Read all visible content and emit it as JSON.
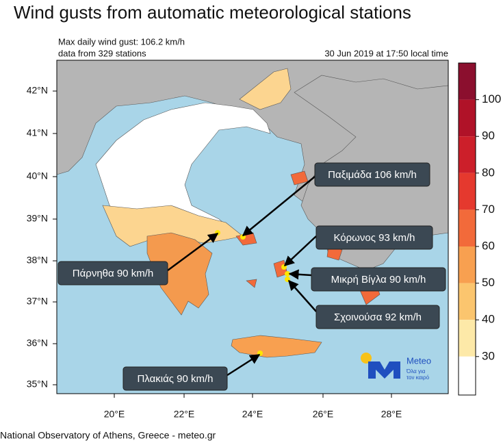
{
  "title": "Wind gusts from automatic meteorological stations",
  "info": {
    "max_gust": "Max daily wind gust: 106.2 km/h",
    "stations": "data from 329 stations",
    "timestamp": "30 Jun 2019 at 17:50 local time"
  },
  "latitude_labels": [
    "42°N",
    "41°N",
    "40°N",
    "39°N",
    "38°N",
    "37°N",
    "36°N",
    "35°N"
  ],
  "longitude_labels": [
    "20°E",
    "22°E",
    "24°E",
    "26°E",
    "28°E"
  ],
  "colorbar": {
    "labels": [
      "100",
      "90",
      "80",
      "70",
      "60",
      "50",
      "40",
      "30"
    ],
    "colors": [
      "#8b0f2e",
      "#b01228",
      "#cc1f2a",
      "#e5392e",
      "#f26a3a",
      "#f8a050",
      "#fbc56e",
      "#fde9a8",
      "#ffffff"
    ]
  },
  "callouts": [
    {
      "label": "Παξιμάδα 106 km/h"
    },
    {
      "label": "Κόρωνος 93 km/h"
    },
    {
      "label": "Μικρή Βίγλα 90 km/h"
    },
    {
      "label": "Σχοινούσα 92 km/h"
    },
    {
      "label": "Πάρνηθα 90 km/h"
    },
    {
      "label": "Πλακιάς 90 km/h"
    }
  ],
  "logo": {
    "name": "Meteo",
    "tagline_1": "Όλα για",
    "tagline_2": "τον καιρό"
  },
  "footer": "National Observatory of Athens, Greece - meteo.gr"
}
